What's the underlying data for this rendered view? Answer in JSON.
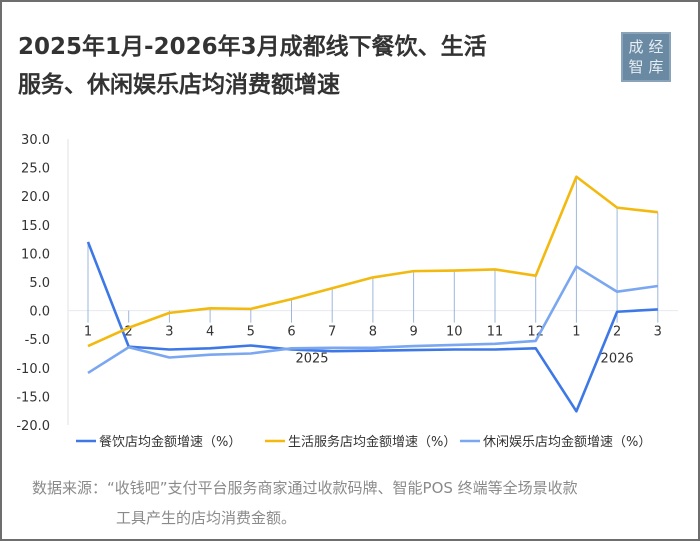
{
  "title": "2025年1月-2026年3月成都线下餐饮、生活服务、休闲娱乐店均消费额增速",
  "title_line1": "2025年1月-2026年3月成都线下餐饮、生活",
  "title_line2": "服务、休闲娱乐店均消费额增速",
  "logo": {
    "chars": [
      "成",
      "经",
      "智",
      "库"
    ]
  },
  "source_line1": "数据来源：“收钱吧”支付平台服务商家通过收款码牌、智能POS 终端等全场景收款",
  "source_line2": "工具产生的店均消费金额。",
  "chart_data": {
    "type": "line",
    "title": "2025年1月-2026年3月成都线下餐饮、生活服务、休闲娱乐店均消费额增速",
    "categories": [
      "1",
      "2",
      "3",
      "4",
      "5",
      "6",
      "7",
      "8",
      "9",
      "10",
      "11",
      "12",
      "1",
      "2",
      "3"
    ],
    "year_groups": [
      {
        "label": "2025",
        "start": 0,
        "end": 11
      },
      {
        "label": "2026",
        "start": 12,
        "end": 14
      }
    ],
    "ylim": [
      -20,
      30
    ],
    "yticks": [
      "30.0",
      "25.0",
      "20.0",
      "15.0",
      "10.0",
      "5.0",
      "0.0",
      "-5.0",
      "-10.0",
      "-15.0",
      "-20.0"
    ],
    "xlabel": "",
    "ylabel": "",
    "legend_position": "bottom",
    "series": [
      {
        "name": "餐饮店均金额增速（%）",
        "color": "#3d78e6",
        "values": [
          12.0,
          -6.3,
          -6.8,
          -6.6,
          -6.1,
          -6.8,
          -7.1,
          -7.0,
          -6.9,
          -6.8,
          -6.8,
          -6.6,
          -17.6,
          -0.2,
          0.2
        ]
      },
      {
        "name": "生活服务店均金额增速（%）",
        "color": "#f2b90f",
        "values": [
          -6.2,
          -3.0,
          -0.4,
          0.4,
          0.3,
          2.0,
          3.9,
          5.8,
          6.9,
          7.0,
          7.2,
          6.1,
          23.4,
          18.0,
          17.2
        ]
      },
      {
        "name": "休闲娱乐店均金额增速（%）",
        "color": "#7ba7f0",
        "values": [
          -10.9,
          -6.4,
          -8.2,
          -7.7,
          -7.5,
          -6.6,
          -6.5,
          -6.5,
          -6.2,
          -6.0,
          -5.8,
          -5.3,
          7.7,
          3.3,
          4.3
        ]
      }
    ]
  }
}
